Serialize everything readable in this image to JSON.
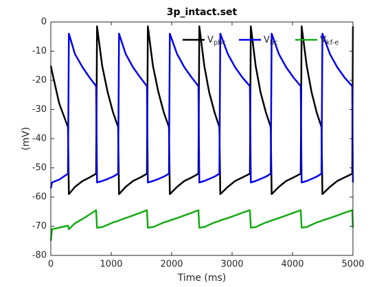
{
  "chart_data": {
    "type": "line",
    "title": "3p_intact.set",
    "xlabel": "Time (ms)",
    "ylabel": "(mV)",
    "x": [
      0,
      20,
      140,
      284,
      299,
      400,
      525,
      640,
      750,
      765,
      850,
      940,
      1030,
      1114,
      1129,
      1240,
      1360,
      1480,
      1591,
      1606,
      1690,
      1780,
      1870,
      1955,
      1970,
      2090,
      2210,
      2330,
      2443,
      2458,
      2540,
      2620,
      2710,
      2790,
      2805,
      2930,
      3050,
      3170,
      3295,
      3310,
      3390,
      3470,
      3560,
      3640,
      3655,
      3775,
      3895,
      4015,
      4136,
      4151,
      4235,
      4315,
      4400,
      4480,
      4495,
      4620,
      4740,
      4860,
      4989,
      5000
    ],
    "series": [
      {
        "name": "Vpbc",
        "color": "#000000",
        "values": [
          -15,
          -17,
          -28,
          -36,
          -59,
          -56.5,
          -54.5,
          -53.3,
          -52,
          -1.5,
          -15,
          -24,
          -31,
          -36,
          -59,
          -56.5,
          -54.5,
          -53.3,
          -52,
          -1.5,
          -15,
          -24,
          -31,
          -36,
          -59,
          -56.5,
          -54.5,
          -53.3,
          -52,
          -1.5,
          -15,
          -24,
          -31,
          -36,
          -59,
          -56.5,
          -54.5,
          -53.3,
          -52,
          -1.5,
          -15,
          -24,
          -31,
          -36,
          -59,
          -56.5,
          -54.5,
          -53.3,
          -52,
          -1.5,
          -15,
          -24,
          -31,
          -36,
          -59,
          -56.5,
          -54.5,
          -53.3,
          -52,
          -1.5
        ]
      },
      {
        "name": "Vbc",
        "color": "#0000ee",
        "values": [
          -57,
          -55,
          -54,
          -52,
          -4,
          -11,
          -15.5,
          -19,
          -22,
          -55,
          -54.5,
          -53.8,
          -53,
          -52,
          -4,
          -11,
          -15.5,
          -19,
          -22,
          -55,
          -54.5,
          -53.8,
          -53,
          -52,
          -4,
          -11,
          -15.5,
          -19,
          -22,
          -55,
          -54.5,
          -53.8,
          -53,
          -52,
          -4,
          -11,
          -15.5,
          -19,
          -22,
          -55,
          -54.5,
          -53.8,
          -53,
          -52,
          -4,
          -11,
          -15.5,
          -19,
          -22,
          -55,
          -54.5,
          -53.8,
          -53,
          -52,
          -4,
          -11,
          -15.5,
          -19,
          -22,
          -55
        ]
      },
      {
        "name": "Vkf-e",
        "color": "#11aa11",
        "values": [
          -75,
          -71,
          -70.5,
          -69.8,
          -71,
          -69,
          -67.5,
          -66,
          -64.5,
          -70.5,
          -70.3,
          -69.5,
          -68.7,
          -68.2,
          -68,
          -67.2,
          -66.3,
          -65.4,
          -64.5,
          -70.5,
          -70.3,
          -69.5,
          -68.7,
          -68.2,
          -68,
          -67.2,
          -66.3,
          -65.4,
          -64.5,
          -70.5,
          -70.3,
          -69.5,
          -68.7,
          -68.2,
          -68,
          -67.2,
          -66.3,
          -65.4,
          -64.5,
          -70.5,
          -70.3,
          -69.5,
          -68.7,
          -68.2,
          -68,
          -67.2,
          -66.3,
          -65.4,
          -64.5,
          -70.5,
          -70.3,
          -69.5,
          -68.7,
          -68.2,
          -68,
          -67.2,
          -66.3,
          -65.4,
          -64.5,
          -70.5
        ]
      }
    ],
    "xlim": [
      0,
      5000
    ],
    "xticks": [
      0,
      1000,
      2000,
      3000,
      4000,
      5000
    ],
    "ylim": [
      -80,
      0
    ],
    "yticks": [
      -80,
      -70,
      -60,
      -50,
      -40,
      -30,
      -20,
      -10,
      0
    ],
    "grid": false,
    "legend": "northeast"
  }
}
